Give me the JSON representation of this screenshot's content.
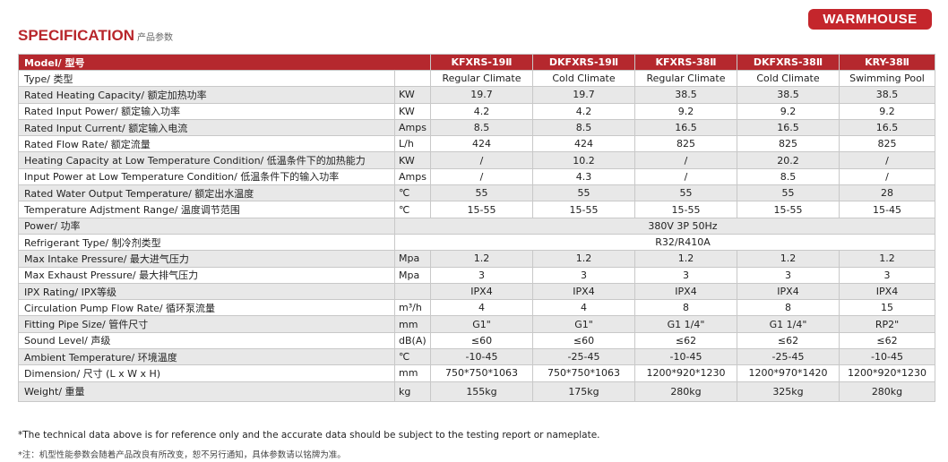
{
  "header": {
    "title": "SPECIFICATION",
    "subtitle": "产品参数",
    "logo": "WARMHOUSE"
  },
  "table": {
    "header": [
      "Model/ 型号",
      "KFXRS-19Ⅱ",
      "DKFXRS-19Ⅱ",
      "KFXRS-38Ⅱ",
      "DKFXRS-38Ⅱ",
      "KRY-38Ⅱ"
    ],
    "rows": [
      {
        "label": "Type/ 类型",
        "values": [
          "Regular Climate",
          "Cold Climate",
          "Regular Climate",
          "Cold Climate",
          "Swimming Pool"
        ]
      },
      {
        "label": "Rated Heating Capacity/ 额定加热功率",
        "unit": "KW",
        "values": [
          "19.7",
          "19.7",
          "38.5",
          "38.5",
          "38.5"
        ]
      },
      {
        "label": "Rated Input Power/ 额定输入功率",
        "unit": "KW",
        "values": [
          "4.2",
          "4.2",
          "9.2",
          "9.2",
          "9.2"
        ]
      },
      {
        "label": "Rated Input Current/ 额定输入电流",
        "unit": "Amps",
        "values": [
          "8.5",
          "8.5",
          "16.5",
          "16.5",
          "16.5"
        ]
      },
      {
        "label": "Rated Flow Rate/ 额定流量",
        "unit": "L/h",
        "values": [
          "424",
          "424",
          "825",
          "825",
          "825"
        ]
      },
      {
        "label": "Heating Capacity at Low Temperature Condition/ 低温条件下的加热能力",
        "unit": "KW",
        "values": [
          "/",
          "10.2",
          "/",
          "20.2",
          "/"
        ]
      },
      {
        "label": "Input Power at Low Temperature Condition/ 低温条件下的输入功率",
        "unit": "Amps",
        "values": [
          "/",
          "4.3",
          "/",
          "8.5",
          "/"
        ]
      },
      {
        "label": "Rated Water Output Temperature/ 额定出水温度",
        "unit": "℃",
        "values": [
          "55",
          "55",
          "55",
          "55",
          "28"
        ]
      },
      {
        "label": "Temperature Adjstment Range/ 温度调节范围",
        "unit": "℃",
        "values": [
          "15-55",
          "15-55",
          "15-55",
          "15-55",
          "15-45"
        ]
      },
      {
        "label": "Power/ 功率",
        "value": "380V 3P 50Hz"
      },
      {
        "label": "Refrigerant Type/ 制冷剂类型",
        "value": "R32/R410A"
      },
      {
        "label": "Max Intake Pressure/ 最大进气压力",
        "unit": "Mpa",
        "values": [
          "1.2",
          "1.2",
          "1.2",
          "1.2",
          "1.2"
        ]
      },
      {
        "label": "Max Exhaust Pressure/ 最大排气压力",
        "unit": "Mpa",
        "values": [
          "3",
          "3",
          "3",
          "3",
          "3"
        ]
      },
      {
        "label": "IPX Rating/ IPX等级",
        "values": [
          "IPX4",
          "IPX4",
          "IPX4",
          "IPX4",
          "IPX4"
        ]
      },
      {
        "label": "Circulation Pump Flow Rate/ 循环泵流量",
        "unit": "m³/h",
        "values": [
          "4",
          "4",
          "8",
          "8",
          "15"
        ]
      },
      {
        "label": "Fitting Pipe Size/ 管件尺寸",
        "unit": "mm",
        "values": [
          "G1\"",
          "G1\"",
          "G1 1/4\"",
          "G1 1/4\"",
          "RP2\""
        ]
      },
      {
        "label": "Sound Level/ 声级",
        "unit": "dB(A)",
        "values": [
          "≤60",
          "≤60",
          "≤62",
          "≤62",
          "≤62"
        ]
      },
      {
        "label": "Ambient Temperature/ 环境温度",
        "unit": "℃",
        "values": [
          "-10-45",
          "-25-45",
          "-10-45",
          "-25-45",
          "-10-45"
        ]
      },
      {
        "label": "Dimension/ 尺寸 (L x W x H)",
        "unit": "mm",
        "values": [
          "750*750*1063",
          "750*750*1063",
          "1200*920*1230",
          "1200*970*1420",
          "1200*920*1230"
        ]
      },
      {
        "label": "Weight/ 重量",
        "unit": "kg",
        "values": [
          "155kg",
          "175kg",
          "280kg",
          "325kg",
          "280kg"
        ]
      }
    ]
  },
  "notes": [
    "*The technical data above is for reference only and the accurate data should be subject to the testing report or nameplate.",
    "*注：机型性能参数会随着产品改良有所改变，恕不另行通知，具体参数请以铭牌为准。"
  ]
}
